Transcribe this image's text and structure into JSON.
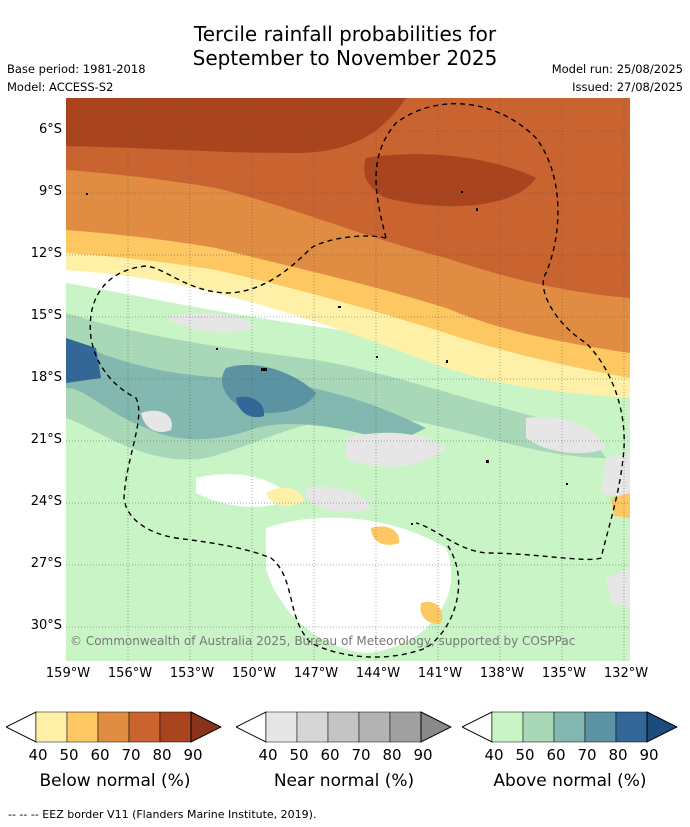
{
  "title_line1": "Tercile rainfall probabilities for",
  "title_line2": "September to November 2025",
  "base_period": "Base period: 1981-2018",
  "model": "Model: ACCESS-S2",
  "model_run": "Model run: 25/08/2025",
  "issued": "Issued: 27/08/2025",
  "lat_labels": [
    "6°S",
    "9°S",
    "12°S",
    "15°S",
    "18°S",
    "21°S",
    "24°S",
    "27°S",
    "30°S"
  ],
  "lon_labels": [
    "159°W",
    "156°W",
    "153°W",
    "150°W",
    "147°W",
    "144°W",
    "141°W",
    "138°W",
    "135°W",
    "132°W"
  ],
  "copyright": "© Commonwealth of Australia 2025, Bureau of Meteorology, supported by COSPPac",
  "legend": {
    "ticks": [
      "40",
      "50",
      "60",
      "70",
      "80",
      "90"
    ],
    "below": {
      "title": "Below normal (%)",
      "colors": [
        "#fff0a8",
        "#fdc761",
        "#e08d43",
        "#c96330",
        "#a9441f",
        "#8b321a"
      ]
    },
    "near": {
      "title": "Near normal (%)",
      "colors": [
        "#e6e6e6",
        "#d6d6d6",
        "#c4c4c4",
        "#b3b3b3",
        "#a0a0a0",
        "#8a8a8a"
      ]
    },
    "above": {
      "title": "Above normal (%)",
      "colors": [
        "#c9f5c6",
        "#a8d8b8",
        "#82b8b0",
        "#5b93a3",
        "#336797",
        "#1c4c7c"
      ]
    }
  },
  "eez_note": "--  --  -- EEZ border V11 (Flanders Marine Institute, 2019)."
}
